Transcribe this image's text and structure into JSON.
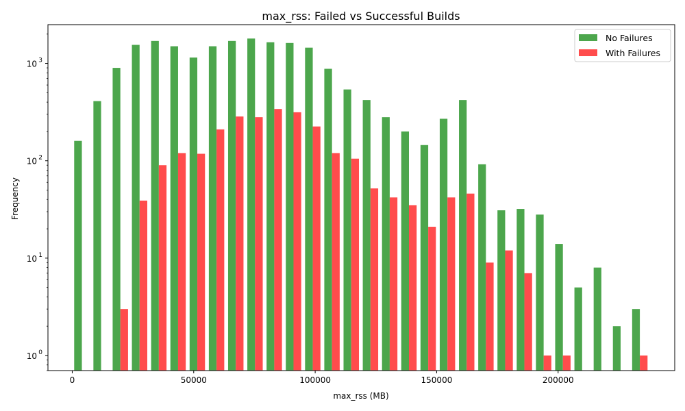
{
  "chart_data": {
    "type": "bar",
    "title": "max_rss: Failed vs Successful Builds",
    "xlabel": "max_rss (MB)",
    "ylabel": "Frequency",
    "yscale": "log",
    "ylim": [
      0.7,
      2500
    ],
    "xlim": [
      -10000,
      248000
    ],
    "xticks": [
      0,
      50000,
      100000,
      150000,
      200000
    ],
    "yticks": [
      {
        "value": 1,
        "base": "10",
        "exp": "0"
      },
      {
        "value": 10,
        "base": "10",
        "exp": "1"
      },
      {
        "value": 100,
        "base": "10",
        "exp": "2"
      },
      {
        "value": 1000,
        "base": "10",
        "exp": "3"
      }
    ],
    "bin_starts": [
      0,
      7920,
      15840,
      23760,
      31680,
      39600,
      47520,
      55440,
      63360,
      71280,
      79200,
      87120,
      95040,
      102960,
      110880,
      118800,
      126720,
      134640,
      142560,
      150480,
      158400,
      166320,
      174240,
      182160,
      190080,
      198000,
      205920,
      213840,
      221760,
      229680
    ],
    "bin_width": 7920,
    "legend_position": "top-right",
    "grid": false,
    "series": [
      {
        "name": "No Failures",
        "color": "#4ca64c",
        "values": [
          160,
          410,
          900,
          1550,
          1700,
          1500,
          1150,
          1500,
          1700,
          1800,
          1650,
          1620,
          1450,
          880,
          540,
          420,
          280,
          200,
          145,
          270,
          420,
          92,
          31,
          32,
          28,
          14,
          5,
          8,
          2,
          3
        ]
      },
      {
        "name": "With Failures",
        "color": "#ff4c4c",
        "values": [
          0,
          0,
          3,
          39,
          90,
          120,
          118,
          210,
          285,
          280,
          340,
          315,
          225,
          120,
          105,
          52,
          42,
          35,
          21,
          42,
          46,
          9,
          12,
          7,
          1,
          1,
          0,
          0,
          0,
          1
        ]
      }
    ]
  }
}
